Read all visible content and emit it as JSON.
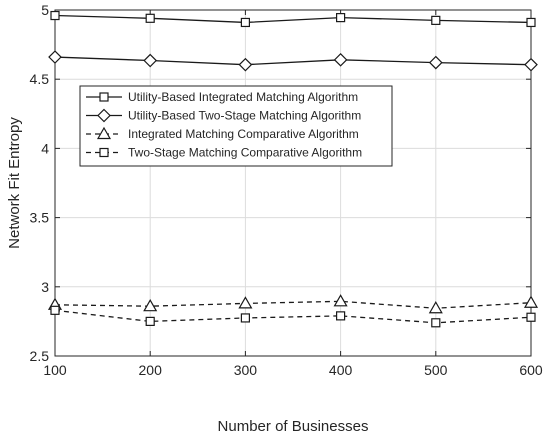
{
  "chart_data": {
    "type": "line",
    "title": "",
    "xlabel": "Number of Businesses",
    "ylabel": "Network Fit Entropy",
    "x": [
      100,
      200,
      300,
      400,
      500,
      600
    ],
    "xlim": [
      100,
      600
    ],
    "ylim": [
      2.5,
      5
    ],
    "xticks": [
      "100",
      "200",
      "300",
      "400",
      "500",
      "600"
    ],
    "yticks": [
      "2.5",
      "3",
      "3.5",
      "4",
      "4.5",
      "5"
    ],
    "grid": true,
    "legend_position": "upper-left",
    "series": [
      {
        "name": "Utility-Based Integrated Matching Algorithm",
        "values": [
          4.96,
          4.94,
          4.91,
          4.945,
          4.925,
          4.91
        ],
        "marker": "square",
        "line": "solid"
      },
      {
        "name": "Utility-Based Two-Stage Matching Algorithm",
        "values": [
          4.66,
          4.635,
          4.605,
          4.64,
          4.62,
          4.605
        ],
        "marker": "diamond",
        "line": "solid"
      },
      {
        "name": "Integrated Matching Comparative Algorithm",
        "values": [
          2.87,
          2.86,
          2.88,
          2.895,
          2.845,
          2.885
        ],
        "marker": "triangle",
        "line": "dashed"
      },
      {
        "name": "Two-Stage Matching Comparative Algorithm",
        "values": [
          2.83,
          2.75,
          2.775,
          2.79,
          2.74,
          2.78
        ],
        "marker": "square",
        "line": "dashed"
      }
    ],
    "colors": {
      "line": "#1a1a1a",
      "grid": "#dcdcdc",
      "axis": "#262626"
    }
  }
}
